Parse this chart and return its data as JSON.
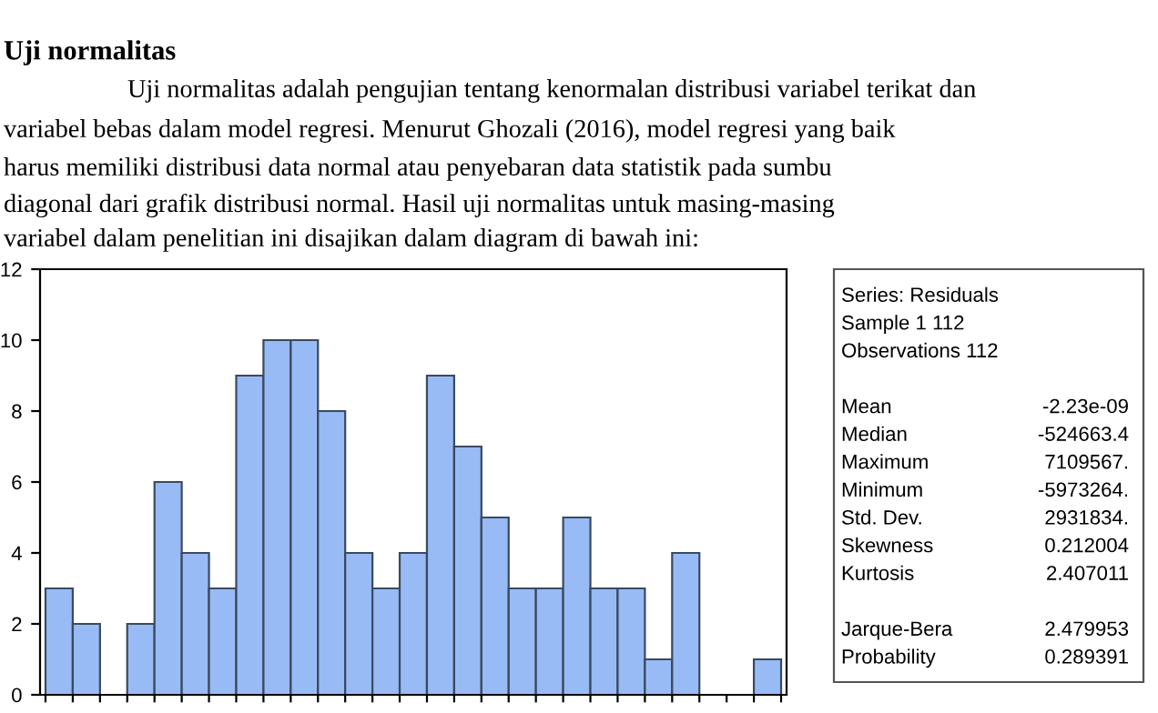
{
  "chart_data": {
    "type": "bar",
    "title": "Uji normalitas",
    "annotations": [
      "Uji normalitas adalah pengujian tentang kenormalan distribusi variabel terikat dan",
      "variabel bebas dalam model regresi. Menurut Ghozali (2016), model regresi yang baik",
      "harus memiliki distribusi data normal atau penyebaran data statistik pada sumbu",
      "diagonal dari grafik distribusi normal. Hasil uji normalitas untuk masing-masing",
      "variabel dalam penelitian ini disajikan dalam diagram di bawah ini:",
      "Series: Residuals",
      "Sample 1 112",
      "Observations 112",
      "Mean\t-2.23e-09",
      "Median\t-524663.4",
      "Maximum\t7109567.",
      "Minimum\t-5973264.",
      "Std. Dev.\t2931834.",
      "Skewness\t0.212004",
      "Kurtosis\t2.407011",
      "Jarque-Bera\t2.479953",
      "Probability\t0.289391"
    ],
    "categories": [
      null,
      null,
      null,
      null,
      null,
      null,
      null,
      null,
      null,
      null,
      null,
      null,
      null,
      null,
      null,
      null,
      null,
      null,
      null,
      null,
      null,
      null,
      null,
      null,
      null,
      null,
      null
    ],
    "values": [
      3,
      2,
      0,
      2,
      6,
      4,
      3,
      9,
      10,
      10,
      8,
      4,
      3,
      4,
      9,
      7,
      5,
      3,
      3,
      5,
      3,
      3,
      1,
      4,
      0,
      0,
      1
    ],
    "color": "#99bbf5",
    "ylim": [
      0,
      12
    ],
    "yticks": [
      0,
      2,
      4,
      6,
      8,
      10,
      12
    ],
    "grid": false
  }
}
